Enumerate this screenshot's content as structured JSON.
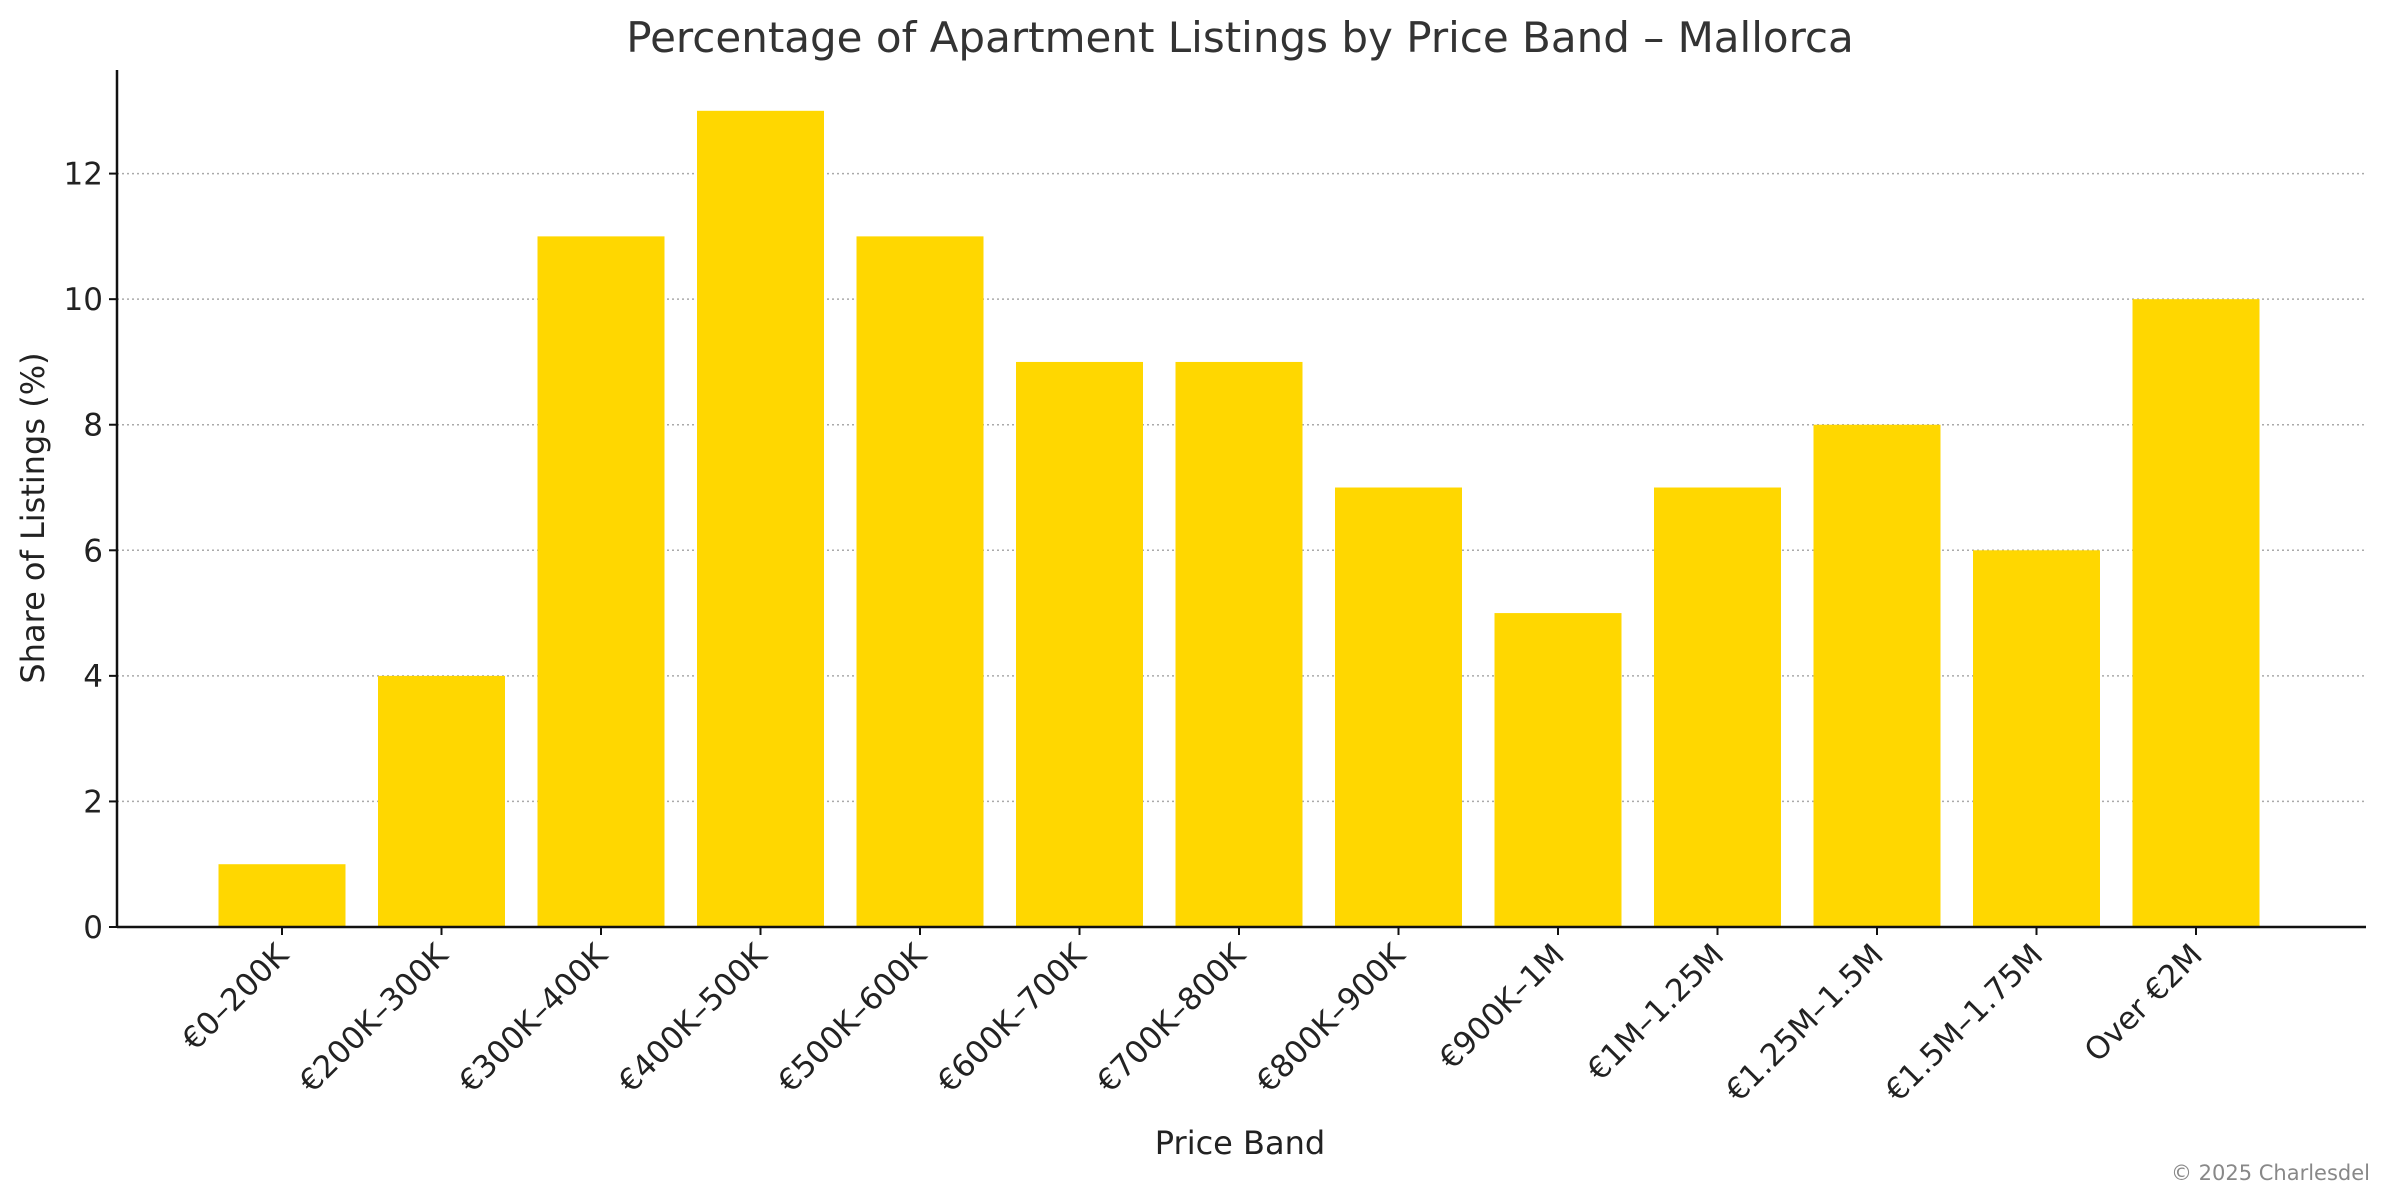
{
  "chart_data": {
    "type": "bar",
    "title": "Percentage of Apartment Listings by Price Band – Mallorca",
    "xlabel": "Price Band",
    "ylabel": "Share of Listings (%)",
    "categories": [
      "€0–200K",
      "€200K–300K",
      "€300K–400K",
      "€400K–500K",
      "€500K–600K",
      "€600K–700K",
      "€700K–800K",
      "€800K–900K",
      "€900K–1M",
      "€1M–1.25M",
      "€1.25M–1.5M",
      "€1.5M–1.75M",
      "Over €2M"
    ],
    "values": [
      1,
      4,
      11,
      13,
      11,
      9,
      9,
      7,
      5,
      7,
      8,
      6,
      10
    ],
    "ylim": [
      0,
      13.65
    ],
    "yticks": [
      0,
      2,
      4,
      6,
      8,
      10,
      12
    ],
    "grid": "horizontal dotted",
    "legend": "none",
    "bar_color": "#FFD700"
  },
  "footer": {
    "copyright": "© 2025 Charlesdel"
  }
}
